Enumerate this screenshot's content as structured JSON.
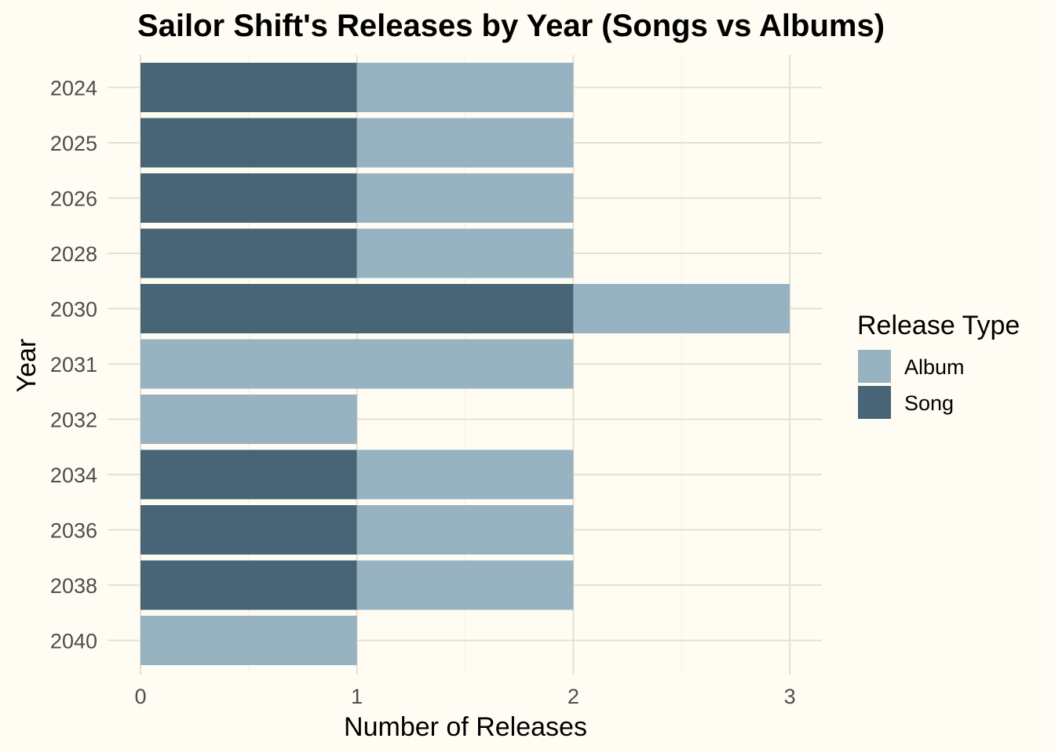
{
  "chart_data": {
    "type": "bar",
    "orientation": "horizontal",
    "stacked": true,
    "title": "Sailor Shift's Releases by Year (Songs vs Albums)",
    "xlabel": "Number of Releases",
    "ylabel": "Year",
    "categories": [
      "2024",
      "2025",
      "2026",
      "2028",
      "2030",
      "2031",
      "2032",
      "2034",
      "2036",
      "2038",
      "2040"
    ],
    "series": [
      {
        "name": "Song",
        "color": "#476576",
        "values": [
          1,
          1,
          1,
          1,
          2,
          0,
          0,
          1,
          1,
          1,
          0
        ]
      },
      {
        "name": "Album",
        "color": "#97b2c1",
        "values": [
          1,
          1,
          1,
          1,
          1,
          2,
          1,
          1,
          1,
          1,
          1
        ]
      }
    ],
    "xlim": [
      0,
      3.15
    ],
    "xticks": [
      "0",
      "1",
      "2",
      "3"
    ],
    "grid": true,
    "legend": {
      "title": "Release Type",
      "position": "right",
      "entries": [
        {
          "label": "Album",
          "color": "#97b2c1"
        },
        {
          "label": "Song",
          "color": "#476576"
        }
      ]
    },
    "background": "#fffdf3"
  }
}
